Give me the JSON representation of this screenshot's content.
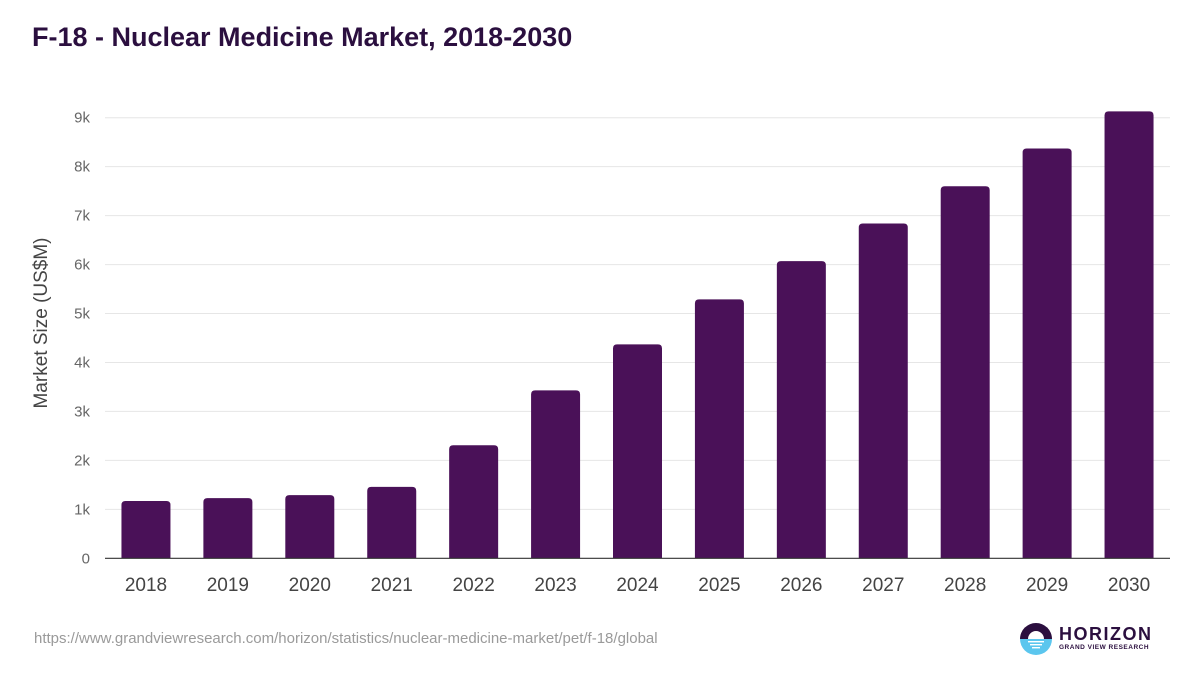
{
  "title": "F-18 - Nuclear Medicine Market, 2018-2030",
  "source_url": "https://www.grandviewresearch.com/horizon/statistics/nuclear-medicine-market/pet/f-18/global",
  "logo": {
    "word": "HORIZON",
    "sub": "GRAND VIEW RESEARCH",
    "icon": "horizon-logo-icon"
  },
  "colors": {
    "bar": "#4a1158",
    "title": "#2b0f3f",
    "grid": "#e6e6e6",
    "axis": "#333333",
    "tick": "#666666",
    "logo_dark": "#2b0f3f",
    "logo_light": "#5bc6ee"
  },
  "chart_data": {
    "type": "bar",
    "title": "F-18 - Nuclear Medicine Market, 2018-2030",
    "xlabel": "",
    "ylabel": "Market Size (US$M)",
    "categories": [
      "2018",
      "2019",
      "2020",
      "2021",
      "2022",
      "2023",
      "2024",
      "2025",
      "2026",
      "2027",
      "2028",
      "2029",
      "2030"
    ],
    "values": [
      1170,
      1230,
      1290,
      1460,
      2310,
      3430,
      4370,
      5290,
      6070,
      6840,
      7600,
      8370,
      9130
    ],
    "ylim": [
      0,
      9000
    ],
    "yticks": [
      0,
      1000,
      2000,
      3000,
      4000,
      5000,
      6000,
      7000,
      8000,
      9000
    ],
    "ytick_labels": [
      "0",
      "1k",
      "2k",
      "3k",
      "4k",
      "5k",
      "6k",
      "7k",
      "8k",
      "9k"
    ],
    "grid": true,
    "legend": "none"
  }
}
